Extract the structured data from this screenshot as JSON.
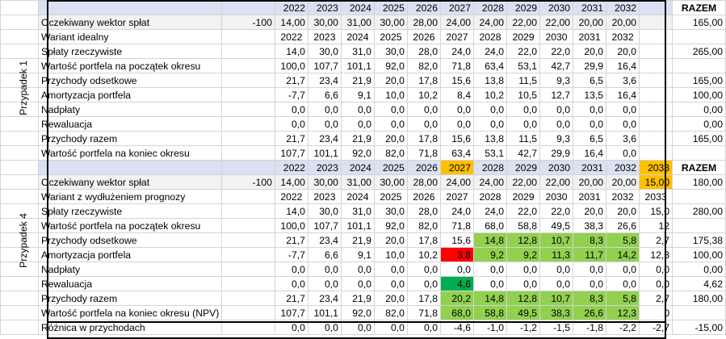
{
  "sheet": {
    "razem": "RAZEM",
    "case1": {
      "label": "Przypadek 1",
      "years": [
        "2022",
        "2023",
        "2024",
        "2025",
        "2026",
        "2027",
        "2028",
        "2029",
        "2030",
        "2031",
        "2032"
      ],
      "rows": [
        {
          "name": "Oczekiwany wektor spłat",
          "init": "-100",
          "vals": [
            "14,00",
            "30,00",
            "31,00",
            "30,00",
            "28,00",
            "24,00",
            "24,00",
            "22,00",
            "22,00",
            "20,00",
            "20,00"
          ],
          "total": "165,00",
          "band": true
        },
        {
          "name": "Wariant idealny",
          "init": "",
          "vals": [
            "2022",
            "2023",
            "2024",
            "2025",
            "2026",
            "2027",
            "2028",
            "2029",
            "2030",
            "2031",
            "2032"
          ],
          "total": ""
        },
        {
          "name": "Spłaty rzeczywiste",
          "init": "",
          "vals": [
            "14,0",
            "30,0",
            "31,0",
            "30,0",
            "28,0",
            "24,0",
            "24,0",
            "22,0",
            "22,0",
            "20,0",
            "20,0"
          ],
          "total": "265,00"
        },
        {
          "name": "Wartość portfela na początek okresu",
          "init": "",
          "vals": [
            "100,0",
            "107,7",
            "101,1",
            "92,0",
            "82,0",
            "71,8",
            "63,4",
            "53,1",
            "42,7",
            "29,9",
            "16,4"
          ],
          "total": ""
        },
        {
          "name": "Przychody odsetkowe",
          "init": "",
          "vals": [
            "21,7",
            "23,4",
            "21,9",
            "20,0",
            "17,8",
            "15,6",
            "13,8",
            "11,5",
            "9,3",
            "6,5",
            "3,6"
          ],
          "total": "165,00"
        },
        {
          "name": "Amortyzacja portfela",
          "init": "",
          "vals": [
            "-7,7",
            "6,6",
            "9,1",
            "10,0",
            "10,2",
            "8,4",
            "10,2",
            "10,5",
            "12,7",
            "13,5",
            "16,4"
          ],
          "total": "100,00"
        },
        {
          "name": "Nadpłaty",
          "init": "",
          "vals": [
            "0,0",
            "0,0",
            "0,0",
            "0,0",
            "0,0",
            "0,0",
            "0,0",
            "0,0",
            "0,0",
            "0,0",
            "0,0"
          ],
          "total": "0,00"
        },
        {
          "name": "Rewaluacja",
          "init": "",
          "vals": [
            "0,0",
            "0,0",
            "0,0",
            "0,0",
            "0,0",
            "0,0",
            "0,0",
            "0,0",
            "0,0",
            "0,0",
            "0,0"
          ],
          "total": "0,00"
        },
        {
          "name": "Przychody razem",
          "init": "",
          "vals": [
            "21,7",
            "23,4",
            "21,9",
            "20,0",
            "17,8",
            "15,6",
            "13,8",
            "11,5",
            "9,3",
            "6,5",
            "3,6"
          ],
          "total": "165,00"
        },
        {
          "name": "Wartość portfela na koniec okresu",
          "init": "",
          "vals": [
            "107,7",
            "101,1",
            "92,0",
            "82,0",
            "71,8",
            "63,4",
            "53,1",
            "42,7",
            "29,9",
            "16,4",
            "0,0"
          ],
          "total": ""
        }
      ]
    },
    "case4": {
      "label": "Przypadek 4",
      "years": [
        "2022",
        "2023",
        "2024",
        "2025",
        "2026",
        "2027",
        "2028",
        "2029",
        "2030",
        "2031",
        "2032",
        "2033"
      ],
      "rows": [
        {
          "name": "Oczekiwany wektor spłat",
          "init": "-100",
          "vals": [
            "14,00",
            "30,00",
            "31,00",
            "30,00",
            "28,00",
            "24,00",
            "24,00",
            "22,00",
            "22,00",
            "20,00",
            "20,00",
            "15,00"
          ],
          "total": "180,00",
          "band": true
        },
        {
          "name": "Wariant z wydłużeniem prognozy",
          "init": "",
          "vals": [
            "2022",
            "2023",
            "2024",
            "2025",
            "2026",
            "2027",
            "2028",
            "2029",
            "2030",
            "2031",
            "2032",
            "2033"
          ],
          "total": ""
        },
        {
          "name": "Spłaty rzeczywiste",
          "init": "",
          "vals": [
            "14,0",
            "30,0",
            "31,0",
            "30,0",
            "28,0",
            "24,0",
            "24,0",
            "22,0",
            "22,0",
            "20,0",
            "20,0",
            "15,0"
          ],
          "total": "280,00"
        },
        {
          "name": "Wartość portfela na początek okresu",
          "init": "",
          "vals": [
            "100,0",
            "107,7",
            "101,1",
            "92,0",
            "82,0",
            "71,8",
            "68,0",
            "58,8",
            "49,5",
            "38,3",
            "26,6",
            "12"
          ],
          "total": ""
        },
        {
          "name": "Przychody odsetkowe",
          "init": "",
          "vals": [
            "21,7",
            "23,4",
            "21,9",
            "20,0",
            "17,8",
            "15,6",
            "14,8",
            "12,8",
            "10,7",
            "8,3",
            "5,8",
            "2,7"
          ],
          "total": "175,38"
        },
        {
          "name": "Amortyzacja portfela",
          "init": "",
          "vals": [
            "-7,7",
            "6,6",
            "9,1",
            "10,0",
            "10,2",
            "3,8",
            "9,2",
            "9,2",
            "11,3",
            "11,7",
            "14,2",
            "12,3"
          ],
          "total": "100,00"
        },
        {
          "name": "Nadpłaty",
          "init": "",
          "vals": [
            "0,0",
            "0,0",
            "0,0",
            "0,0",
            "0,0",
            "0,0",
            "0,0",
            "0,0",
            "0,0",
            "0,0",
            "0,0",
            "0,0"
          ],
          "total": "0,00"
        },
        {
          "name": "Rewaluacja",
          "init": "",
          "vals": [
            "0,0",
            "0,0",
            "0,0",
            "0,0",
            "0,0",
            "4,6",
            "0,0",
            "0,0",
            "0,0",
            "0,0",
            "0,0",
            "0,0"
          ],
          "total": "4,62"
        },
        {
          "name": "Przychody razem",
          "init": "",
          "vals": [
            "21,7",
            "23,4",
            "21,9",
            "20,0",
            "17,8",
            "20,2",
            "14,8",
            "12,8",
            "10,7",
            "8,3",
            "5,8",
            "2,7"
          ],
          "total": "180,00"
        },
        {
          "name": "Wartość portfela na koniec okresu (NPV)",
          "init": "",
          "vals": [
            "107,7",
            "101,1",
            "92,0",
            "82,0",
            "71,8",
            "68,0",
            "58,8",
            "49,5",
            "38,3",
            "26,6",
            "12,3",
            "0"
          ],
          "total": ""
        },
        {
          "name": "Różnica w przychodach",
          "init": "",
          "vals": [
            "0,0",
            "0,0",
            "0,0",
            "0,0",
            "0,0",
            "-4,6",
            "-1,0",
            "-1,2",
            "-1,5",
            "-1,8",
            "-2,2",
            "-2,7"
          ],
          "total": "-15,00"
        }
      ]
    },
    "colors": {
      "header_fill": "#d9e1f2",
      "band_fill": "#f2f2f2",
      "light_green": "#92d050",
      "green": "#00b050",
      "red": "#ff0000",
      "orange": "#ffc000"
    }
  }
}
